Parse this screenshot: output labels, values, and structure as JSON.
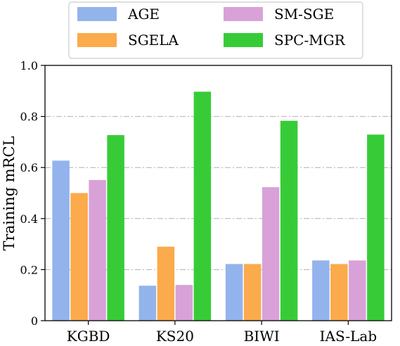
{
  "chart_data": {
    "type": "bar",
    "title": "",
    "xlabel": "",
    "ylabel": "Training mRCL",
    "categories": [
      "KGBD",
      "KS20",
      "BIWI",
      "IAS-Lab"
    ],
    "ylim": [
      0,
      1.0
    ],
    "yticks": [
      "0",
      "0.2",
      "0.4",
      "0.6",
      "0.8",
      "1.0"
    ],
    "grid": "y-dashdot",
    "legend_position": "top-center",
    "series": [
      {
        "name": "AGE",
        "color": "#93b3ec",
        "values": [
          0.627,
          0.137,
          0.222,
          0.236
        ]
      },
      {
        "name": "SGELA",
        "color": "#fbaa4c",
        "values": [
          0.5,
          0.29,
          0.222,
          0.222
        ]
      },
      {
        "name": "SM-SGE",
        "color": "#d8a2d8",
        "values": [
          0.551,
          0.14,
          0.523,
          0.236
        ]
      },
      {
        "name": "SPC-MGR",
        "color": "#37cc37",
        "values": [
          0.727,
          0.897,
          0.783,
          0.729
        ]
      }
    ]
  }
}
